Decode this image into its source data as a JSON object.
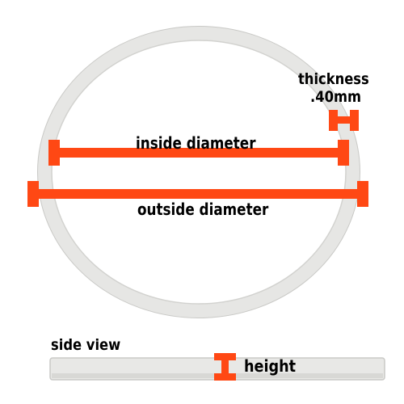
{
  "labels": {
    "inside_diameter": "inside diameter",
    "outside_diameter": "outside diameter",
    "thickness": "thickness",
    "thickness_value": ".40mm",
    "side_view": "side view",
    "height": "height"
  },
  "colors": {
    "ring": "#e6e6e4",
    "ring_edge": "#c9c9c6",
    "marker": "#ff4814",
    "text": "#000000",
    "background": "#ffffff"
  }
}
